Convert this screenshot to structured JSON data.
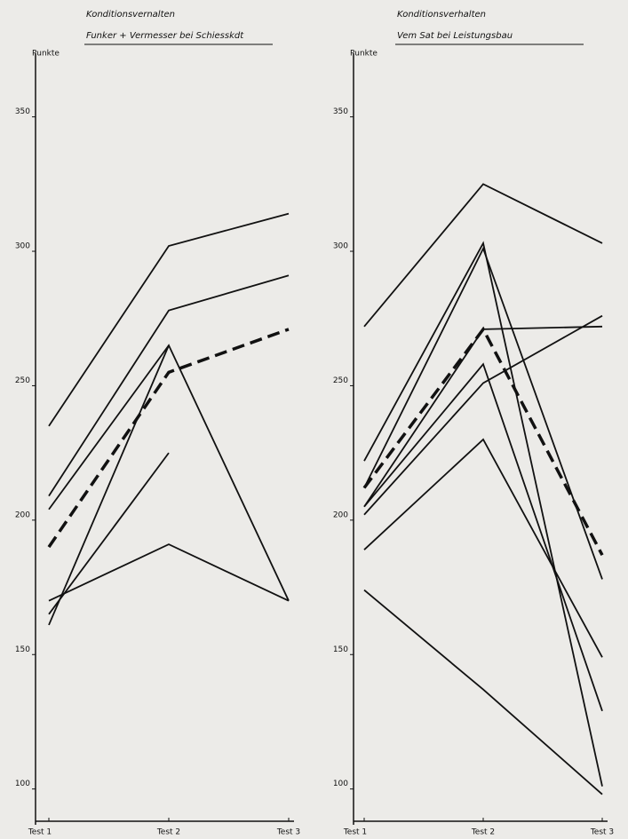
{
  "chart_data": [
    {
      "type": "line",
      "title": "Konditionsvernalten",
      "subtitle": "Funker + Vermesser bei Schiesskdt",
      "y_label": "Punkte",
      "categories": [
        "Test 1",
        "Test 2",
        "Test 3"
      ],
      "ylim": [
        88,
        372
      ],
      "yticks": [
        100,
        150,
        200,
        250,
        300,
        350
      ],
      "series": [
        {
          "color": "#111111",
          "values": [
            235,
            302,
            314
          ]
        },
        {
          "color": "#111111",
          "values": [
            209,
            278,
            291
          ]
        },
        {
          "color": "#111111",
          "values": [
            204,
            265,
            170
          ]
        },
        {
          "color": "#111111",
          "values": [
            161,
            265,
            null
          ]
        },
        {
          "color": "#111111",
          "values": [
            165,
            225,
            null
          ]
        },
        {
          "color": "#111111",
          "values": [
            170,
            191,
            170
          ]
        },
        {
          "color": "#111111",
          "values": [
            190,
            255,
            271
          ],
          "dashed": true
        }
      ]
    },
    {
      "type": "line",
      "title": "Konditionsverhalten",
      "subtitle": "Vem Sat bei Leistungsbau",
      "y_label": "Punkte",
      "categories": [
        "Test 1",
        "Test 2",
        "Test 3"
      ],
      "ylim": [
        88,
        372
      ],
      "yticks": [
        100,
        150,
        200,
        250,
        300,
        350
      ],
      "series": [
        {
          "color": "#111111",
          "values": [
            272,
            325,
            303
          ]
        },
        {
          "color": "#111111",
          "values": [
            222,
            303,
            101
          ]
        },
        {
          "color": "#111111",
          "values": [
            212,
            301,
            178
          ]
        },
        {
          "color": "#111111",
          "values": [
            205,
            258,
            129
          ]
        },
        {
          "color": "#111111",
          "values": [
            202,
            251,
            276
          ]
        },
        {
          "color": "#111111",
          "values": [
            205,
            271,
            272
          ]
        },
        {
          "color": "#111111",
          "values": [
            189,
            230,
            149
          ]
        },
        {
          "color": "#111111",
          "values": [
            174,
            137,
            98
          ]
        },
        {
          "color": "#111111",
          "values": [
            212,
            271,
            187
          ],
          "dashed": true
        }
      ]
    }
  ]
}
